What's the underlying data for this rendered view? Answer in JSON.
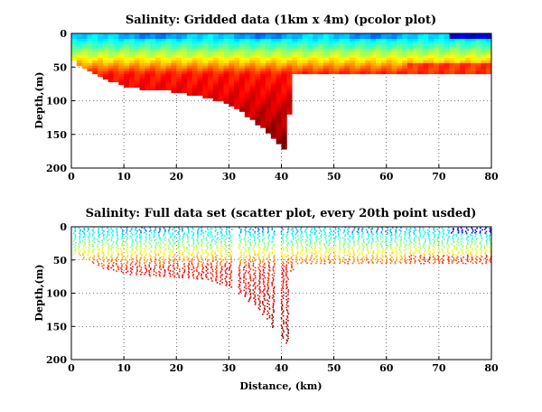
{
  "chart_data": [
    {
      "type": "heatmap",
      "title": "Salinity: Gridded data (1km x 4m) (pcolor plot)",
      "xlabel": "",
      "ylabel": "Depth,(m)",
      "xlim": [
        0,
        80
      ],
      "ylim": [
        200,
        0
      ],
      "y_axis_reversed": true,
      "xticks": [
        "0",
        "10",
        "20",
        "30",
        "40",
        "50",
        "60",
        "70",
        "80"
      ],
      "yticks": [
        "0",
        "50",
        "100",
        "150",
        "200"
      ],
      "grid": "dotted",
      "colormap": "jet",
      "cell_size": "1km x 4m",
      "bottom_depth_profile": {
        "distance_km": [
          0,
          1,
          2,
          3,
          4,
          5,
          6,
          8,
          10,
          13,
          16,
          20,
          24,
          27,
          29,
          31,
          33,
          35,
          37,
          38,
          39,
          40,
          41,
          42,
          60,
          80
        ],
        "depth_m": [
          38,
          42,
          48,
          52,
          56,
          60,
          65,
          70,
          76,
          80,
          82,
          85,
          90,
          95,
          100,
          108,
          118,
          130,
          142,
          152,
          160,
          168,
          175,
          60,
          60,
          60
        ]
      }
    },
    {
      "type": "scatter",
      "title": "Salinity: Full data set (scatter plot, every 20th point usded)",
      "xlabel": "Distance, (km)",
      "ylabel": "Depth,(m)",
      "xlim": [
        0,
        80
      ],
      "ylim": [
        200,
        0
      ],
      "y_axis_reversed": true,
      "xticks": [
        "0",
        "10",
        "20",
        "30",
        "40",
        "50",
        "60",
        "70",
        "80"
      ],
      "yticks": [
        "0",
        "50",
        "100",
        "150",
        "200"
      ],
      "grid": "dotted",
      "colormap": "jet",
      "subsample": "every 20th point",
      "bottom_depth_profile": {
        "distance_km": [
          0,
          1,
          2,
          3,
          4,
          5,
          6,
          8,
          10,
          13,
          16,
          20,
          24,
          27,
          29,
          31,
          33,
          35,
          37,
          38,
          39,
          40,
          41,
          42,
          60,
          80
        ],
        "depth_m": [
          38,
          42,
          46,
          50,
          54,
          58,
          62,
          66,
          70,
          72,
          74,
          76,
          78,
          82,
          88,
          95,
          106,
          120,
          135,
          148,
          160,
          168,
          175,
          55,
          55,
          55
        ]
      }
    }
  ]
}
